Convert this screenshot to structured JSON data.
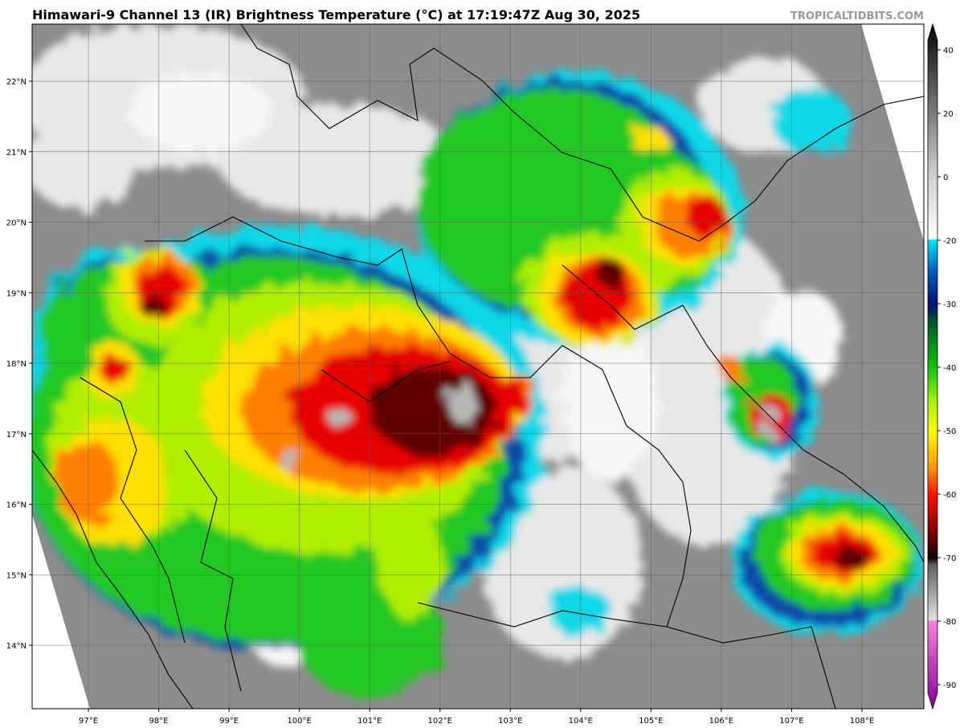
{
  "map": {
    "title": "Himawari-9 Channel 13 (IR) Brightness Temperature (°C) at 17:19:47Z Aug 30, 2025",
    "watermark": "TROPICALTIDBITS.COM",
    "xlim": [
      96.2,
      108.88
    ],
    "ylim": [
      13.1,
      22.81
    ],
    "xticks": [
      {
        "value": 97,
        "label": "97°E"
      },
      {
        "value": 98,
        "label": "98°E"
      },
      {
        "value": 99,
        "label": "99°E"
      },
      {
        "value": 100,
        "label": "100°E"
      },
      {
        "value": 101,
        "label": "101°E"
      },
      {
        "value": 102,
        "label": "102°E"
      },
      {
        "value": 103,
        "label": "103°E"
      },
      {
        "value": 104,
        "label": "104°E"
      },
      {
        "value": 105,
        "label": "105°E"
      },
      {
        "value": 106,
        "label": "106°E"
      },
      {
        "value": 107,
        "label": "107°E"
      },
      {
        "value": 108,
        "label": "108°E"
      }
    ],
    "yticks": [
      {
        "value": 14,
        "label": "14°N"
      },
      {
        "value": 15,
        "label": "15°N"
      },
      {
        "value": 16,
        "label": "16°N"
      },
      {
        "value": 17,
        "label": "17°N"
      },
      {
        "value": 18,
        "label": "18°N"
      },
      {
        "value": 19,
        "label": "19°N"
      },
      {
        "value": 20,
        "label": "20°N"
      },
      {
        "value": 21,
        "label": "21°N"
      },
      {
        "value": 22,
        "label": "22°N"
      }
    ],
    "grid": true,
    "colorbar_ticks": [
      40,
      20,
      0,
      -20,
      -30,
      -40,
      -50,
      -60,
      -70,
      -80,
      -90
    ]
  }
}
